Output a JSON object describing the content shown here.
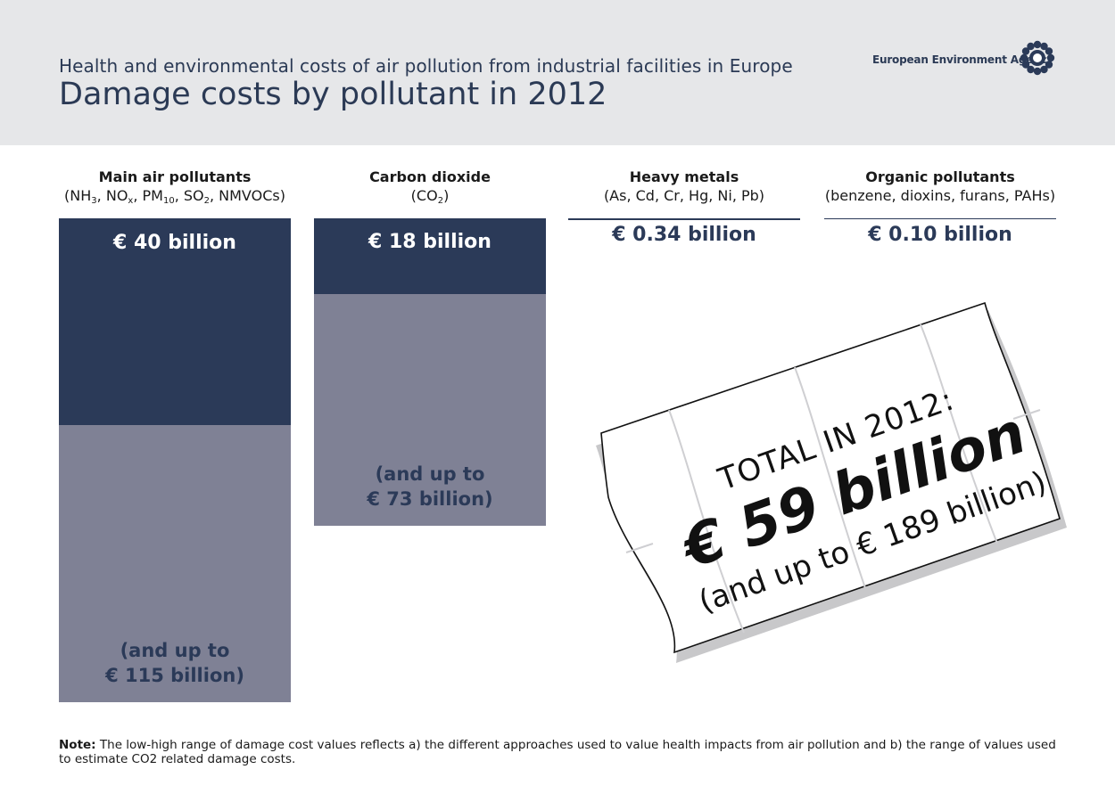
{
  "header": {
    "subtitle": "Health and environmental costs of air pollution from industrial facilities in Europe",
    "title": "Damage costs by pollutant in 2012",
    "org_name": "European Environment Agency",
    "logo_icon": "eea-sun-logo-icon"
  },
  "colors": {
    "header_bg": "#e6e7e9",
    "dark_navy": "#2b3a58",
    "slate_grey": "#7f8195"
  },
  "chart_data": {
    "type": "bar",
    "unit": "€ billion",
    "categories": [
      "Main air pollutants",
      "Carbon dioxide",
      "Heavy metals",
      "Organic pollutants"
    ],
    "category_details": [
      {
        "name": "Main air pollutants",
        "detail": "(NH3, NOx, PM10, SO2, NMVOCs)"
      },
      {
        "name": "Carbon dioxide",
        "detail": "(CO2)"
      },
      {
        "name": "Heavy metals",
        "detail": "(As, Cd, Cr, Hg, Ni, Pb)"
      },
      {
        "name": "Organic pollutants",
        "detail": "(benzene, dioxins, furans, PAHs)"
      }
    ],
    "series": [
      {
        "name": "",
        "values": [
          40,
          18,
          0.34,
          0.1
        ]
      },
      {
        "name": "",
        "values": [
          115,
          73,
          null,
          null
        ]
      }
    ],
    "ylim": [
      0,
      115
    ],
    "data_labels": {
      "low": [
        "€ 40 billion",
        "€ 18 billion",
        "€ 0.34 billion",
        "€ 0.10 billion"
      ],
      "high_line1": [
        "(and up to",
        "(and up to",
        "",
        ""
      ],
      "high_line2": [
        "€ 115 billion)",
        "€ 73 billion)",
        "",
        ""
      ]
    },
    "total": {
      "label": "TOTAL IN 2012:",
      "value": "€ 59 billion",
      "range": "(and up to € 189 billion)"
    }
  },
  "note": {
    "label": "Note:",
    "text": "The low-high range of damage cost values reflects a) the different approaches used to value health impacts from air pollution and b) the range of values used to estimate CO2 related damage costs."
  }
}
